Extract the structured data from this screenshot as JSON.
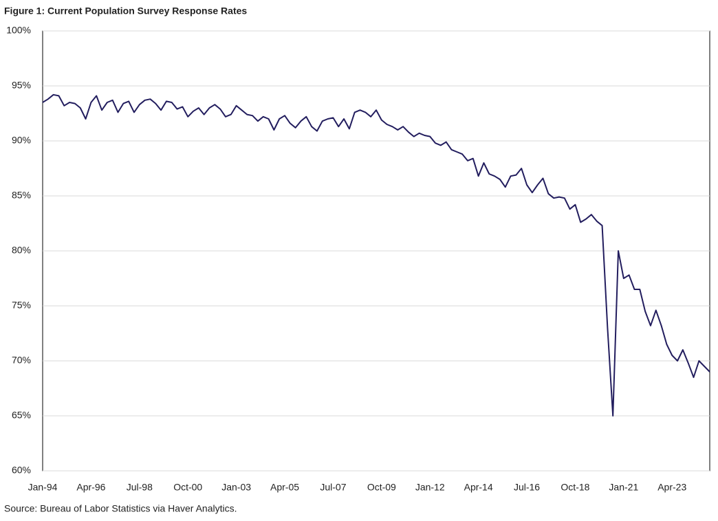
{
  "chart_data": {
    "type": "line",
    "title": "Figure 1: Current Population Survey Response Rates",
    "source": "Source: Bureau of Labor Statistics via Haver Analytics.",
    "categories": [
      "Jan-94",
      null,
      null,
      null,
      null,
      null,
      null,
      null,
      null,
      "Apr-96",
      null,
      null,
      null,
      null,
      null,
      null,
      null,
      null,
      "Jul-98",
      null,
      null,
      null,
      null,
      null,
      null,
      null,
      null,
      "Oct-00",
      null,
      null,
      null,
      null,
      null,
      null,
      null,
      null,
      "Jan-03",
      null,
      null,
      null,
      null,
      null,
      null,
      null,
      null,
      "Apr-05",
      null,
      null,
      null,
      null,
      null,
      null,
      null,
      null,
      "Jul-07",
      null,
      null,
      null,
      null,
      null,
      null,
      null,
      null,
      "Oct-09",
      null,
      null,
      null,
      null,
      null,
      null,
      null,
      null,
      "Jan-12",
      null,
      null,
      null,
      null,
      null,
      null,
      null,
      null,
      "Apr-14",
      null,
      null,
      null,
      null,
      null,
      null,
      null,
      null,
      "Jul-16",
      null,
      null,
      null,
      null,
      null,
      null,
      null,
      null,
      "Oct-18",
      null,
      null,
      null,
      null,
      null,
      null,
      null,
      null,
      "Jan-21",
      null,
      null,
      null,
      null,
      null,
      null,
      null,
      null,
      "Apr-23",
      null,
      null,
      null,
      null,
      null,
      null,
      null
    ],
    "series": [
      {
        "color": "#221d5e",
        "values": [
          93.5,
          93.8,
          94.2,
          94.1,
          93.2,
          93.5,
          93.4,
          93.0,
          92.0,
          93.5,
          94.1,
          92.8,
          93.5,
          93.7,
          92.6,
          93.4,
          93.6,
          92.6,
          93.3,
          93.7,
          93.8,
          93.4,
          92.8,
          93.6,
          93.5,
          92.9,
          93.1,
          92.2,
          92.7,
          93.0,
          92.4,
          93.0,
          93.3,
          92.9,
          92.2,
          92.4,
          93.2,
          92.8,
          92.4,
          92.3,
          91.8,
          92.2,
          92.0,
          91.0,
          92.0,
          92.3,
          91.6,
          91.2,
          91.8,
          92.2,
          91.3,
          90.9,
          91.8,
          92.0,
          92.1,
          91.3,
          92.0,
          91.1,
          92.6,
          92.8,
          92.6,
          92.2,
          92.8,
          91.9,
          91.5,
          91.3,
          91.0,
          91.3,
          90.8,
          90.4,
          90.7,
          90.5,
          90.4,
          89.8,
          89.6,
          89.9,
          89.2,
          89.0,
          88.8,
          88.2,
          88.4,
          86.8,
          88.0,
          87.0,
          86.8,
          86.5,
          85.8,
          86.8,
          86.9,
          87.5,
          86.0,
          85.3,
          86.0,
          86.6,
          85.2,
          84.8,
          84.9,
          84.8,
          83.8,
          84.2,
          82.6,
          82.9,
          83.3,
          82.7,
          82.3,
          73.0,
          65.0,
          80.0,
          77.5,
          77.8,
          76.5,
          76.5,
          74.5,
          73.2,
          74.6,
          73.2,
          71.5,
          70.5,
          70.0,
          71.0,
          69.8,
          68.5,
          70.0,
          69.5,
          69.0
        ]
      }
    ],
    "ylim": [
      60,
      100
    ],
    "yticks": [
      {
        "value": 60,
        "label": "60%"
      },
      {
        "value": 65,
        "label": "65%"
      },
      {
        "value": 70,
        "label": "70%"
      },
      {
        "value": 75,
        "label": "75%"
      },
      {
        "value": 80,
        "label": "80%"
      },
      {
        "value": 85,
        "label": "85%"
      },
      {
        "value": 90,
        "label": "90%"
      },
      {
        "value": 95,
        "label": "95%"
      },
      {
        "value": 100,
        "label": "100%"
      }
    ],
    "grid": true
  }
}
